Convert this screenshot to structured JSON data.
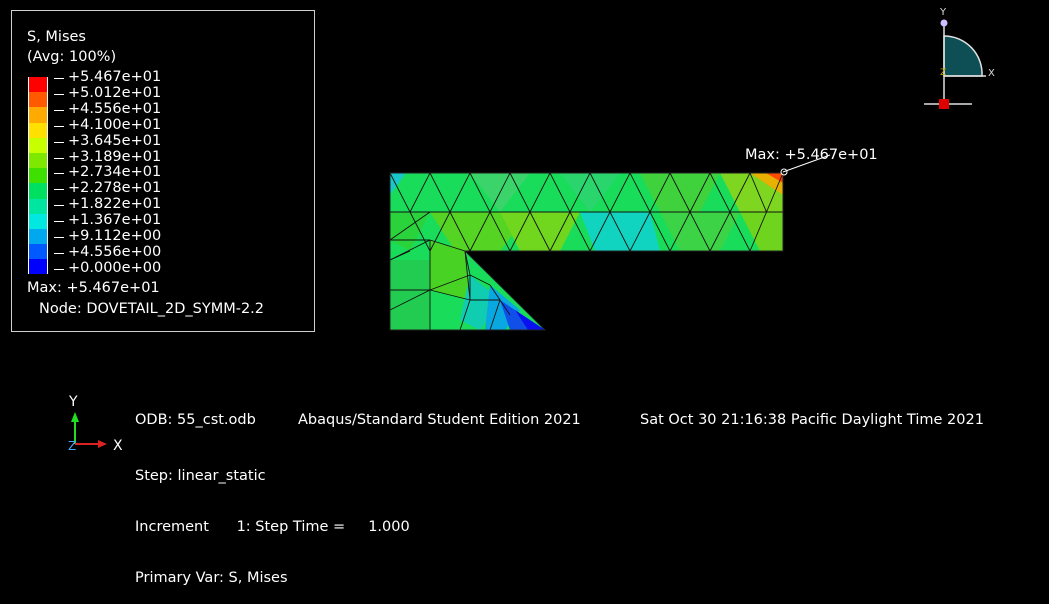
{
  "legend": {
    "title_line1": "S, Mises",
    "title_line2": "(Avg: 100%)",
    "labels": [
      "+5.467e+01",
      "+5.012e+01",
      "+4.556e+01",
      "+4.100e+01",
      "+3.645e+01",
      "+3.189e+01",
      "+2.734e+01",
      "+2.278e+01",
      "+1.822e+01",
      "+1.367e+01",
      "+9.112e+00",
      "+4.556e+00",
      "+0.000e+00"
    ],
    "colors": [
      "#ff0000",
      "#ff5a00",
      "#ffaa00",
      "#ffe000",
      "#c8ff00",
      "#7ee800",
      "#3ee000",
      "#00e060",
      "#00e6a0",
      "#00e8e0",
      "#00a8f0",
      "#005aff",
      "#0000ff"
    ],
    "max_line": "Max: +5.467e+01",
    "node_line": "Node: DOVETAIL_2D_SYMM-2.2"
  },
  "model": {
    "max_label": "Max: +5.467e+01"
  },
  "view_triad": {
    "y_label": "Y",
    "x_label": "X",
    "z_label": "Z"
  },
  "global_triad": {
    "y_label": "Y",
    "x_label": "X",
    "z_label": "Z"
  },
  "status": {
    "odb": "ODB: 55_cst.odb",
    "product": "Abaqus/Standard Student Edition 2021",
    "datetime": "Sat Oct 30 21:16:38 Pacific Daylight Time 2021",
    "step": "Step: linear_static",
    "increment": "Increment      1: Step Time =     1.000",
    "primary_var": "Primary Var: S, Mises"
  }
}
